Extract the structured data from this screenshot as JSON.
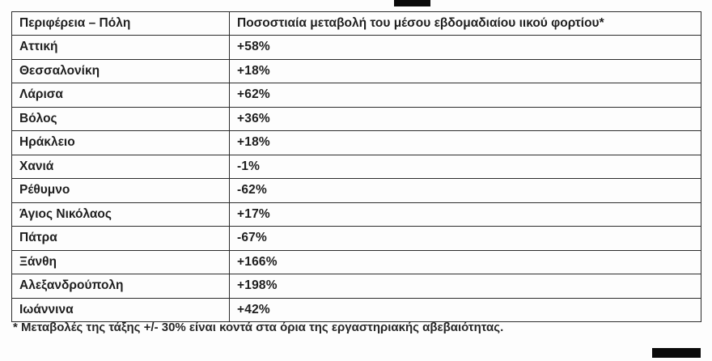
{
  "table": {
    "headers": {
      "region_city": "Περιφέρεια – Πόλη",
      "metric": "Ποσοστιαία μεταβολή του μέσου εβδομαδιαίου ιικού φορτίου*"
    },
    "rows": [
      {
        "region": "Αττική",
        "change": "+58%"
      },
      {
        "region": "Θεσσαλονίκη",
        "change": "+18%"
      },
      {
        "region": "Λάρισα",
        "change": "+62%"
      },
      {
        "region": "Βόλος",
        "change": "+36%"
      },
      {
        "region": "Ηράκλειο",
        "change": "+18%"
      },
      {
        "region": "Χανιά",
        "change": "-1%"
      },
      {
        "region": "Ρέθυμνο",
        "change": "-62%"
      },
      {
        "region": "Άγιος Νικόλαος",
        "change": "+17%"
      },
      {
        "region": "Πάτρα",
        "change": "-67%"
      },
      {
        "region": "Ξάνθη",
        "change": "+166%"
      },
      {
        "region": "Αλεξανδρούπολη",
        "change": "+198%"
      },
      {
        "region": "Ιωάννινα",
        "change": "+42%"
      }
    ],
    "footnote": "* Μεταβολές της τάξης +/- 30% είναι κοντά στα όρια της εργαστηριακής αβεβαιότητας."
  }
}
